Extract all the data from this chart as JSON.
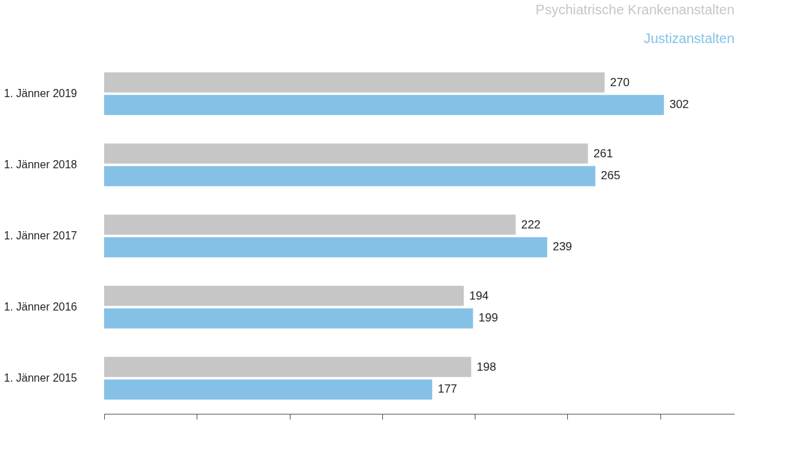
{
  "chart_data": {
    "type": "bar",
    "orientation": "horizontal",
    "categories": [
      "1. Jänner 2019",
      "1. Jänner 2018",
      "1. Jänner 2017",
      "1. Jänner 2016",
      "1. Jänner 2015"
    ],
    "series": [
      {
        "name": "Psychiatrische Krankenanstalten",
        "color": "#c6c6c6",
        "values": [
          270,
          261,
          222,
          194,
          198
        ]
      },
      {
        "name": "Justizanstalten",
        "color": "#85c1e6",
        "values": [
          302,
          265,
          239,
          199,
          177
        ]
      }
    ],
    "xlim": [
      0,
      340
    ],
    "xticks": [
      {
        "value": 0,
        "label": null
      },
      {
        "value": 50,
        "label": null
      },
      {
        "value": 100,
        "label": null
      },
      {
        "value": 150,
        "label": null
      },
      {
        "value": 200,
        "label": null
      },
      {
        "value": 250,
        "label": null
      },
      {
        "value": 300,
        "label": null
      }
    ],
    "tick_labels": "y",
    "data_labels": true,
    "legend": "top right",
    "grid": false
  }
}
